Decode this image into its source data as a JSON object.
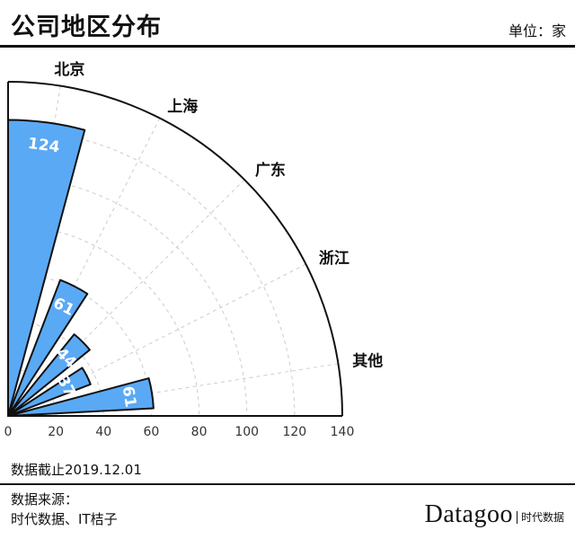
{
  "header": {
    "title": "公司地区分布",
    "unit": "单位：家"
  },
  "footer": {
    "cutoff": "数据截止2019.12.01",
    "source_title": "数据来源：",
    "source_text": "时代数据、IT桔子",
    "brand_name": "Datagoo",
    "brand_sub": "时代数据"
  },
  "colors": {
    "bar_fill": "#5aa9f5",
    "bar_stroke": "#111111",
    "grid": "#cccccc",
    "axis": "#111111"
  },
  "chart_data": {
    "type": "bar",
    "subtype": "polar-quarter-rose",
    "categories": [
      "北京",
      "上海",
      "广东",
      "浙江",
      "其他"
    ],
    "values": [
      124,
      61,
      44,
      37,
      61
    ],
    "value_labels": [
      "124",
      "61",
      "44",
      "37",
      "61"
    ],
    "title": "公司地区分布",
    "unit": "单位：家",
    "rlim": [
      0,
      140
    ],
    "r_ticks": [
      "0",
      "20",
      "40",
      "60",
      "80",
      "100",
      "120",
      "140"
    ],
    "grid": true
  }
}
